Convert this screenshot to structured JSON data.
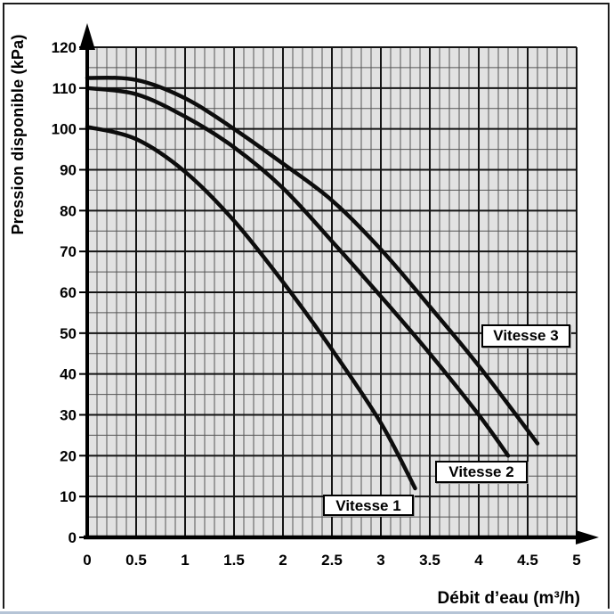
{
  "chart_data": {
    "type": "line",
    "title": "",
    "xlabel": "Débit d’eau (m³/h)",
    "ylabel": "Pression disponible (kPa)",
    "xlim": [
      0,
      5
    ],
    "ylim": [
      0,
      120
    ],
    "x_major_step": 0.5,
    "x_minor_step": 0.1,
    "y_major_step": 10,
    "y_minor_step": 5,
    "x_ticks": [
      "0",
      "0.5",
      "1",
      "1.5",
      "2",
      "2.5",
      "3",
      "3.5",
      "4",
      "4.5",
      "5"
    ],
    "y_ticks": [
      "0",
      "10",
      "20",
      "30",
      "40",
      "50",
      "60",
      "70",
      "80",
      "90",
      "100",
      "110",
      "120"
    ],
    "grid": true,
    "legend_position": "labels-on-plot",
    "series": [
      {
        "name": "Vitesse 1",
        "x": [
          0,
          0.5,
          1.0,
          1.5,
          2.0,
          2.5,
          3.0,
          3.35
        ],
        "y": [
          100.5,
          97.5,
          89.5,
          77.5,
          62.5,
          46,
          28,
          12
        ]
      },
      {
        "name": "Vitesse 2",
        "x": [
          0,
          0.5,
          1.0,
          1.5,
          2.0,
          2.5,
          3.0,
          3.5,
          4.0,
          4.3
        ],
        "y": [
          110,
          108.5,
          103,
          95.5,
          85.5,
          72.5,
          59,
          45,
          30,
          20
        ]
      },
      {
        "name": "Vitesse 3",
        "x": [
          0,
          0.5,
          1.0,
          1.5,
          2.0,
          2.5,
          3.0,
          3.5,
          4.0,
          4.6
        ],
        "y": [
          112.5,
          112,
          107.5,
          100,
          91.5,
          82.5,
          70.5,
          56.5,
          42,
          23
        ]
      }
    ],
    "colors": {
      "curve": "#0d0d0d",
      "plot_bg": "#e2e2e2",
      "grid_minor": "#555555",
      "grid_major": "#141414",
      "axis": "#000000",
      "tick_text": "#000000",
      "frame_border": "#1c1c1c",
      "bottom_edge": "#b5c4d6"
    }
  }
}
